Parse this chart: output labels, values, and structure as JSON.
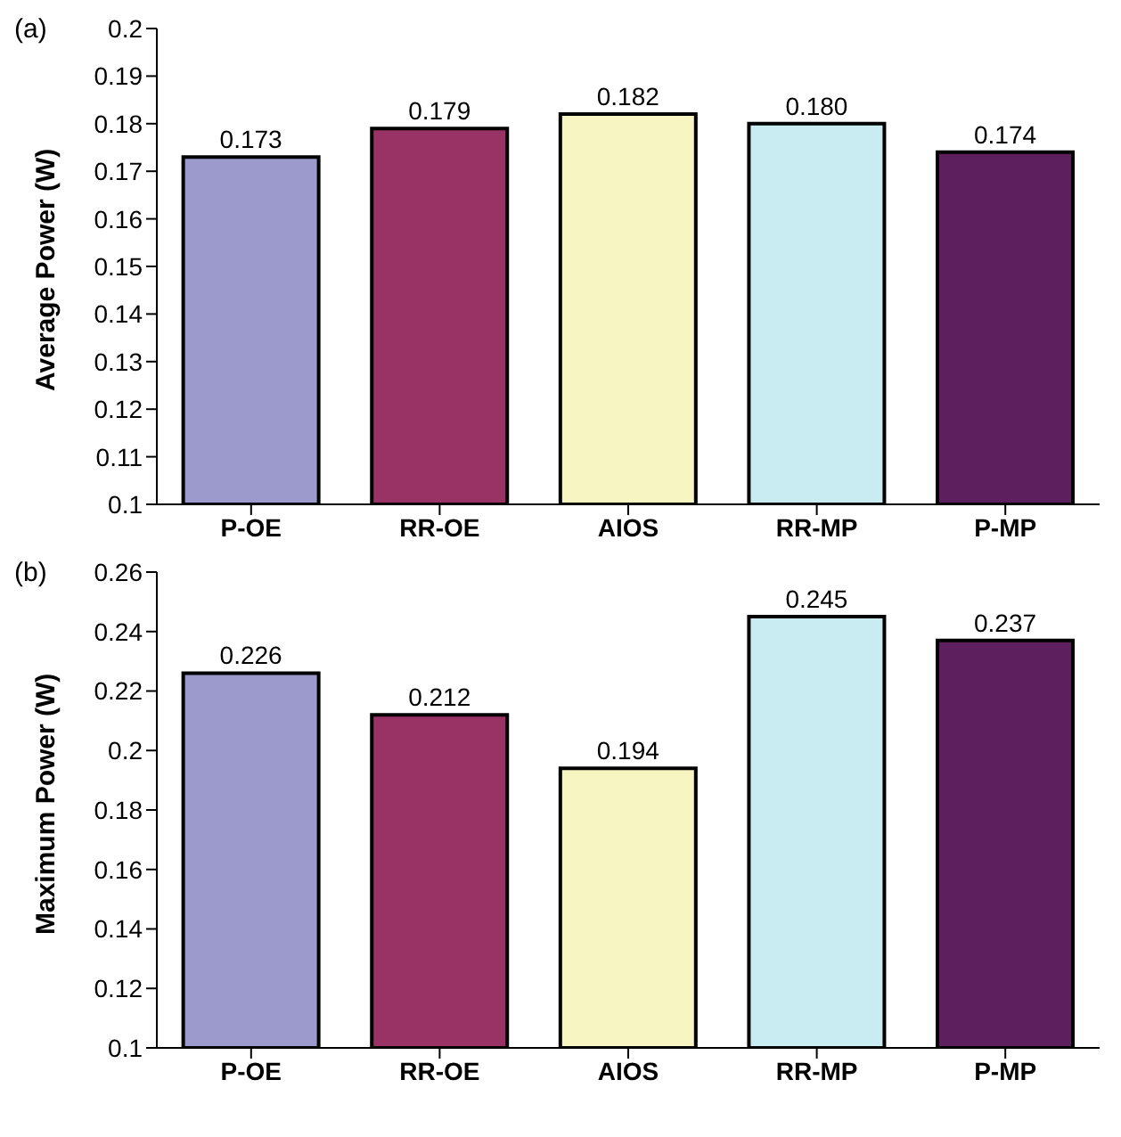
{
  "chart_data": [
    {
      "type": "bar",
      "ylabel": "Average Power (W)",
      "annotations": [
        "(a)"
      ],
      "categories": [
        "P-OE",
        "RR-OE",
        "AIOS",
        "RR-MP",
        "P-MP"
      ],
      "values": [
        0.173,
        0.179,
        0.182,
        0.18,
        0.174
      ],
      "value_labels": [
        "0.173",
        "0.179",
        "0.182",
        "0.180",
        "0.174"
      ],
      "colors": [
        "#9c99cc",
        "#993366",
        "#f7f5c2",
        "#c9ecf2",
        "#5e1f5e"
      ],
      "ylim": [
        0.1,
        0.2
      ],
      "yticks": [
        0.1,
        0.11,
        0.12,
        0.13,
        0.14,
        0.15,
        0.16,
        0.17,
        0.18,
        0.19,
        0.2
      ],
      "grid": false,
      "legend": false
    },
    {
      "type": "bar",
      "ylabel": "Maximum Power (W)",
      "annotations": [
        "(b)"
      ],
      "categories": [
        "P-OE",
        "RR-OE",
        "AIOS",
        "RR-MP",
        "P-MP"
      ],
      "values": [
        0.226,
        0.212,
        0.194,
        0.245,
        0.237
      ],
      "value_labels": [
        "0.226",
        "0.212",
        "0.194",
        "0.245",
        "0.237"
      ],
      "colors": [
        "#9c99cc",
        "#993366",
        "#f7f5c2",
        "#c9ecf2",
        "#5e1f5e"
      ],
      "ylim": [
        0.1,
        0.26
      ],
      "yticks": [
        0.1,
        0.12,
        0.14,
        0.16,
        0.18,
        0.2,
        0.22,
        0.24,
        0.26
      ],
      "grid": false,
      "legend": false
    }
  ]
}
